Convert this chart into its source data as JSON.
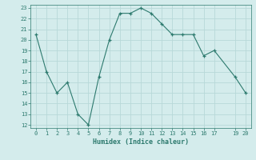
{
  "x": [
    0,
    1,
    2,
    3,
    4,
    5,
    6,
    7,
    8,
    9,
    10,
    11,
    12,
    13,
    14,
    15,
    16,
    17,
    19,
    20
  ],
  "y": [
    20.5,
    17.0,
    15.0,
    16.0,
    13.0,
    12.0,
    16.5,
    20.0,
    22.5,
    22.5,
    23.0,
    22.5,
    21.5,
    20.5,
    20.5,
    20.5,
    18.5,
    19.0,
    16.5,
    15.0
  ],
  "xlim": [
    -0.5,
    20.5
  ],
  "ylim": [
    11.7,
    23.3
  ],
  "yticks": [
    12,
    13,
    14,
    15,
    16,
    17,
    18,
    19,
    20,
    21,
    22,
    23
  ],
  "xticks": [
    0,
    1,
    2,
    3,
    4,
    5,
    6,
    7,
    8,
    9,
    10,
    11,
    12,
    13,
    14,
    15,
    16,
    17,
    19,
    20
  ],
  "xlabel": "Humidex (Indice chaleur)",
  "line_color": "#2d7a6e",
  "marker_color": "#2d7a6e",
  "bg_color": "#d4ecec",
  "grid_color": "#b8d8d8",
  "tick_color": "#2d7a6e",
  "label_color": "#2d7a6e"
}
